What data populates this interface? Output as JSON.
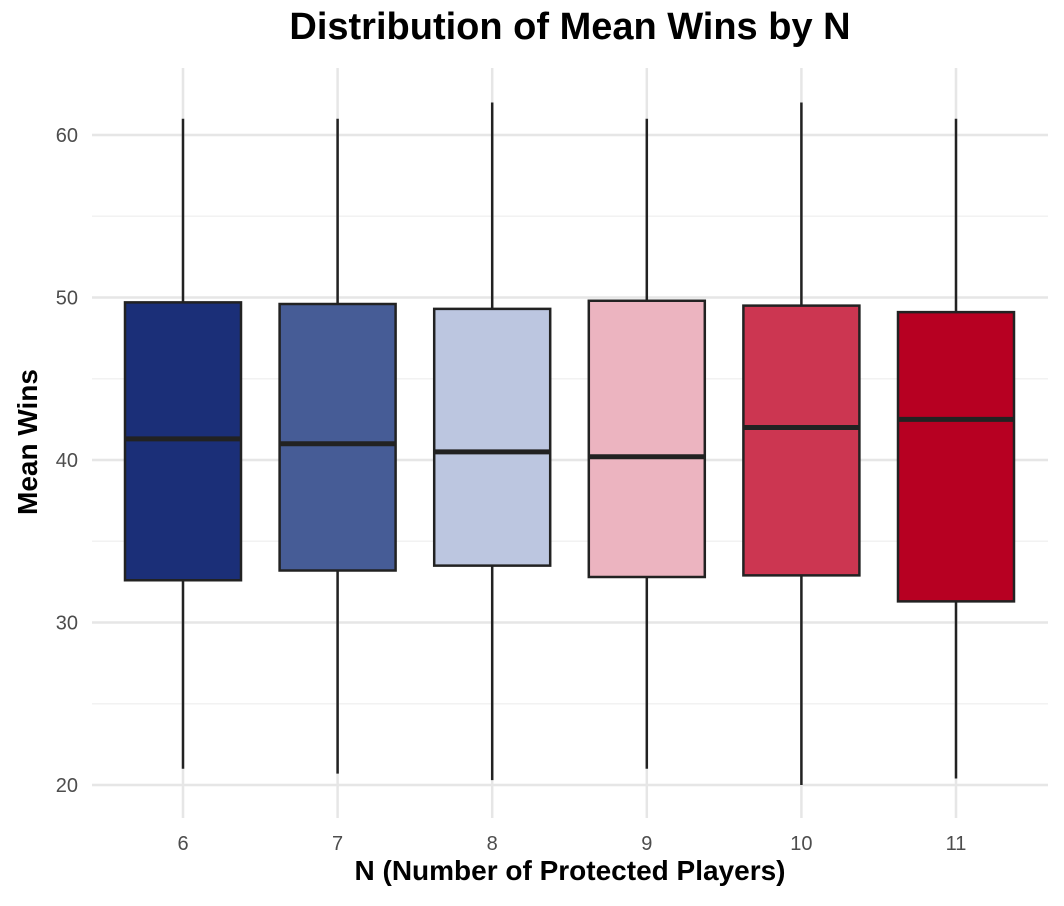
{
  "chart_data": {
    "type": "box",
    "title": "Distribution of Mean Wins by N",
    "xlabel": "N (Number of Protected Players)",
    "ylabel": "Mean Wins",
    "categories": [
      "6",
      "7",
      "8",
      "9",
      "10",
      "11"
    ],
    "yticks": [
      20,
      30,
      40,
      50,
      60
    ],
    "ylim": [
      18.2,
      63.9
    ],
    "grid": true,
    "legend": "none",
    "boxes": [
      {
        "category": "6",
        "min": 21.0,
        "q1": 32.6,
        "median": 41.3,
        "q3": 49.7,
        "max": 61.0,
        "color": "#1b2f78"
      },
      {
        "category": "7",
        "min": 20.7,
        "q1": 33.2,
        "median": 41.0,
        "q3": 49.6,
        "max": 61.0,
        "color": "#465c96"
      },
      {
        "category": "8",
        "min": 20.3,
        "q1": 33.5,
        "median": 40.5,
        "q3": 49.3,
        "max": 62.0,
        "color": "#bcc6e0"
      },
      {
        "category": "9",
        "min": 21.0,
        "q1": 32.8,
        "median": 40.2,
        "q3": 49.8,
        "max": 61.0,
        "color": "#ecb4c0"
      },
      {
        "category": "10",
        "min": 20.0,
        "q1": 32.9,
        "median": 42.0,
        "q3": 49.5,
        "max": 62.0,
        "color": "#cc3651"
      },
      {
        "category": "11",
        "min": 20.4,
        "q1": 31.3,
        "median": 42.5,
        "q3": 49.1,
        "max": 61.0,
        "color": "#b70022"
      }
    ]
  }
}
